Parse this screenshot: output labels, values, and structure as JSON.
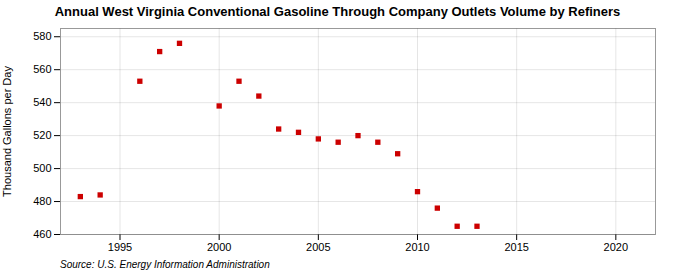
{
  "chart_data": {
    "type": "scatter",
    "title": "Annual West Virginia Conventional Gasoline Through Company Outlets Volume by Refiners",
    "ylabel": "Thousand Gallons per Day",
    "source": "Source: U.S. Energy Information Administration",
    "x": [
      1993,
      1994,
      1996,
      1997,
      1998,
      2000,
      2001,
      2002,
      2003,
      2004,
      2005,
      2006,
      2007,
      2008,
      2009,
      2010,
      2011,
      2012,
      2013
    ],
    "values": [
      483,
      484,
      553,
      571,
      576,
      538,
      553,
      544,
      524,
      522,
      518,
      516,
      520,
      516,
      509,
      486,
      476,
      465,
      465
    ],
    "color": "#cc0000",
    "marker": "square",
    "xlim": [
      1992,
      2022
    ],
    "ylim": [
      460,
      585
    ],
    "xticks": [
      1995,
      2000,
      2005,
      2010,
      2015,
      2020
    ],
    "yticks": [
      460,
      480,
      500,
      520,
      540,
      560,
      580
    ],
    "grid": true
  }
}
